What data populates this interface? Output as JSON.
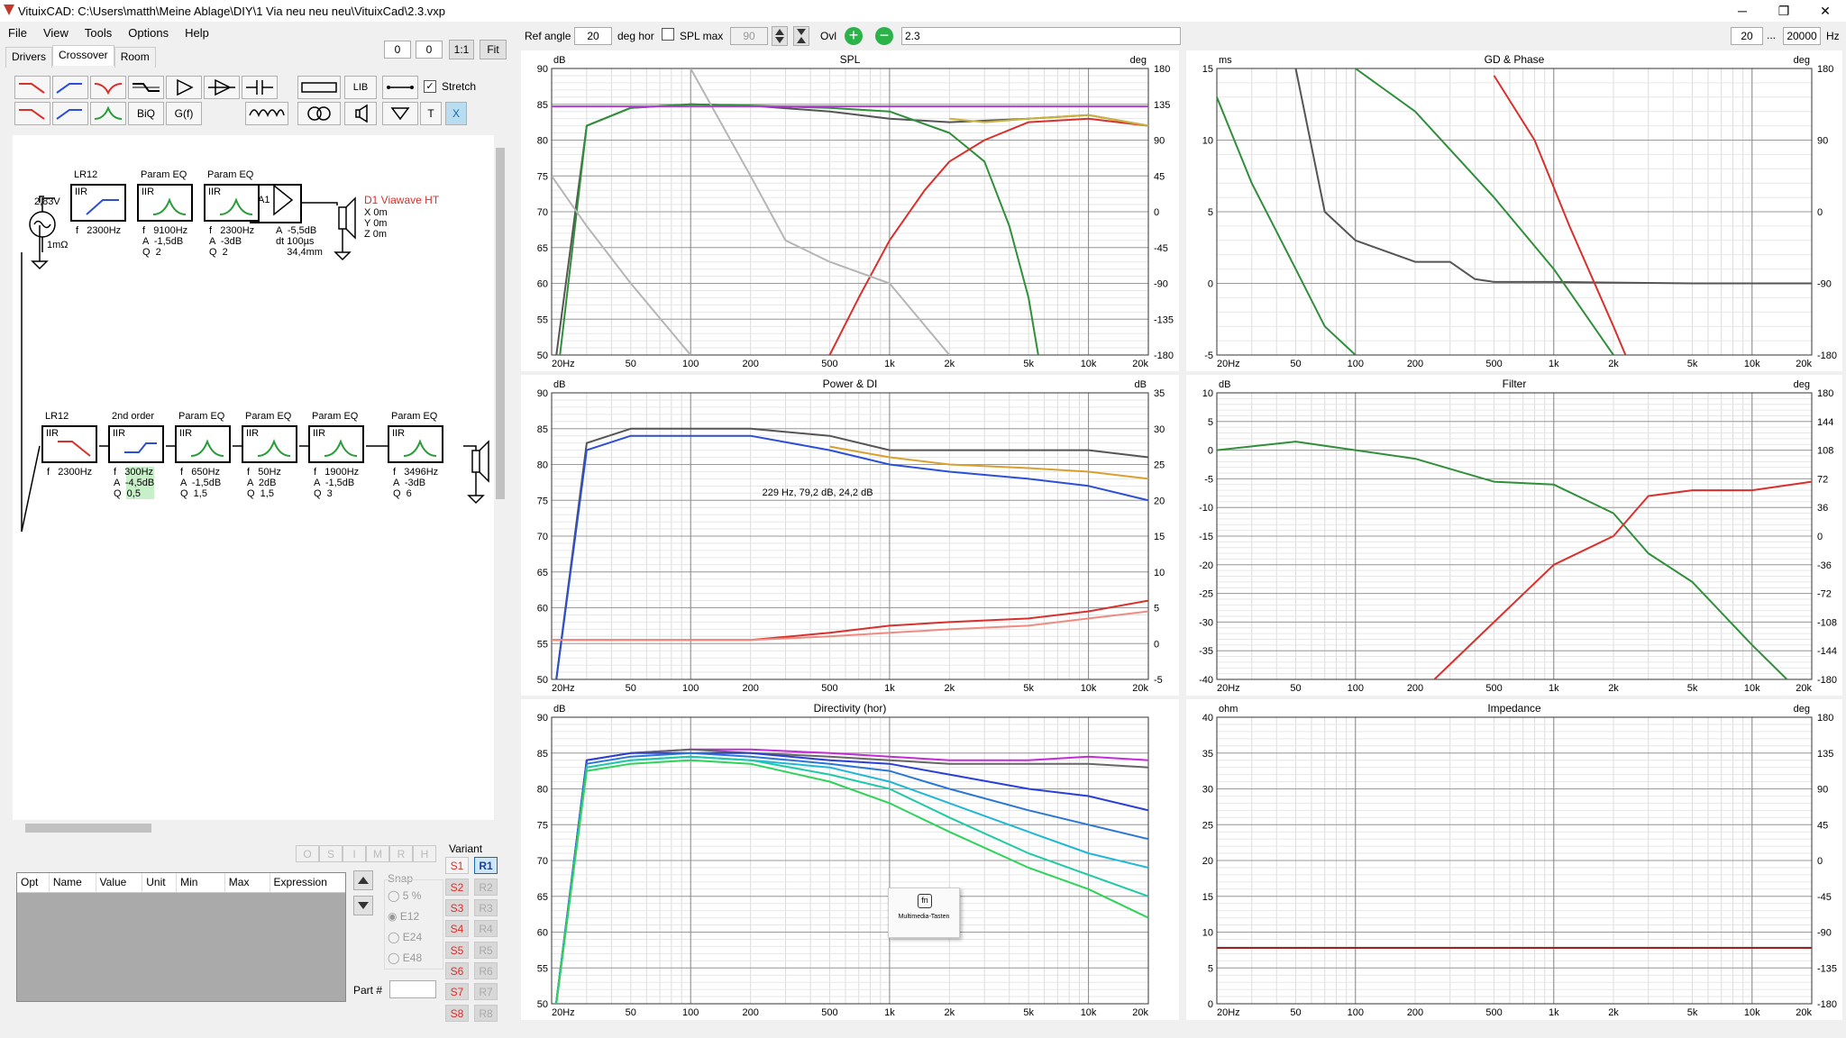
{
  "window": {
    "title": "VituixCAD: C:\\Users\\matth\\Meine Ablage\\DIY\\1 Via neu neu neu\\VituixCad\\2.3.vxp",
    "min": "─",
    "max": "❐",
    "close": "✕"
  },
  "menu": [
    "File",
    "View",
    "Tools",
    "Options",
    "Help"
  ],
  "tabs": [
    "Drivers",
    "Crossover",
    "Room"
  ],
  "crossover_toolbar": {
    "x1": "0",
    "x2": "0",
    "one_to_one": "1:1",
    "fit": "Fit",
    "lib": "LIB",
    "biq": "BiQ",
    "gf": "G(f)",
    "stretch_label": "Stretch",
    "t": "T",
    "x": "X"
  },
  "top_toolbar": {
    "ref_angle_label": "Ref angle",
    "ref_angle_value": "20",
    "deg_hor": "deg hor",
    "spl_max_label": "SPL max",
    "spl_max_value": "90",
    "ovl_label": "Ovl",
    "ovl_value": "2.3",
    "freq_min": "20",
    "freq_sep": "...",
    "freq_max": "20000",
    "hz": "Hz"
  },
  "schematic": {
    "gen_voltage": "2,83V",
    "gen_r": "1mΩ",
    "top_chain": [
      {
        "title": "LR12",
        "type": "IIR",
        "params": "f   2300Hz"
      },
      {
        "title": "Param EQ",
        "type": "IIR",
        "params": "f   9100Hz\nA  -1,5dB\nQ  2"
      },
      {
        "title": "Param EQ",
        "type": "IIR",
        "params": "f   2300Hz\nA  -3dB\nQ  2"
      }
    ],
    "amp": {
      "label": "A1",
      "params": "A  -5,5dB\ndt 100µs\n    34,4mm"
    },
    "driver1": {
      "name": "D1 Viawave HT",
      "pos": "X 0m\nY 0m\nZ 0m"
    },
    "bottom_chain": [
      {
        "title": "LR12",
        "type": "IIR",
        "params": "f   2300Hz"
      },
      {
        "title": "2nd order",
        "type": "IIR",
        "params": "f   300Hz\nA  -4,5dB\nQ  0,5"
      },
      {
        "title": "Param EQ",
        "type": "IIR",
        "params": "f   650Hz\nA  -1,5dB\nQ  1,5"
      },
      {
        "title": "Param EQ",
        "type": "IIR",
        "params": "f   50Hz\nA  2dB\nQ  1,5"
      },
      {
        "title": "Param EQ",
        "type": "IIR",
        "params": "f   1900Hz\nA  -1,5dB\nQ  3"
      },
      {
        "title": "Param EQ",
        "type": "IIR",
        "params": "f   3496Hz\nA  -3dB\nQ  6"
      }
    ]
  },
  "params_panel": {
    "letter_buttons": [
      "O",
      "S",
      "I",
      "M",
      "R",
      "H"
    ],
    "columns": [
      "Opt",
      "Name",
      "Value",
      "Unit",
      "Min",
      "Max",
      "Expression"
    ],
    "snap_label": "Snap",
    "snap_options": [
      "5 %",
      "E12",
      "E24",
      "E48"
    ],
    "snap_selected": "E12",
    "part_label": "Part #",
    "variant_label": "Variant",
    "variants_s": [
      "S1",
      "S2",
      "S3",
      "S4",
      "S5",
      "S6",
      "S7",
      "S8"
    ],
    "variants_r": [
      "R1",
      "R2",
      "R3",
      "R4",
      "R5",
      "R6",
      "R7",
      "R8"
    ]
  },
  "tooltip": {
    "icon": "fn",
    "text": "Multimedia-Tasten"
  },
  "colors": {
    "accent_red": "#d9302c",
    "accent_blue": "#2b4fd6",
    "accent_green": "#2a9d3a",
    "purple_line": "#b03fd1"
  },
  "chart_data": [
    {
      "type": "line",
      "title": "SPL",
      "xlabel": "Hz",
      "ylabel": "dB",
      "y2label": "deg",
      "xscale": "log",
      "xlim": [
        20,
        20000
      ],
      "ylim": [
        50,
        90
      ],
      "y2lim": [
        -180,
        180
      ],
      "xticks": [
        "20Hz",
        "50",
        "100",
        "200",
        "500",
        "1k",
        "2k",
        "5k",
        "10k",
        "20k"
      ],
      "yticks": [
        "90",
        "85",
        "80",
        "75",
        "70",
        "65",
        "60",
        "55",
        "50"
      ],
      "y2ticks": [
        "180",
        "135",
        "90",
        "45",
        "0",
        "-45",
        "-90",
        "-135",
        "-180"
      ],
      "series": [
        {
          "color": "#555555",
          "x": [
            20,
            30,
            50,
            100,
            200,
            500,
            1000,
            2000,
            5000,
            10000,
            20000
          ],
          "y": [
            45,
            82,
            84.5,
            85,
            84.8,
            84,
            83,
            82.5,
            83,
            83.5,
            82
          ]
        },
        {
          "color": "#2f8f3a",
          "x": [
            20,
            30,
            50,
            100,
            200,
            500,
            1000,
            2000,
            3000,
            4000,
            5000,
            6000
          ],
          "y": [
            40,
            82,
            84.5,
            85,
            84.8,
            84.5,
            84,
            81,
            77,
            68,
            58,
            45
          ]
        },
        {
          "color": "#d9302c",
          "x": [
            500,
            700,
            1000,
            1500,
            2000,
            3000,
            5000,
            10000,
            20000
          ],
          "y": [
            50,
            58,
            66,
            73,
            77,
            80,
            82.5,
            83,
            82
          ]
        },
        {
          "color": "#b5b5b5",
          "x": [
            20,
            30,
            50,
            100
          ],
          "y": [
            75,
            68,
            60,
            50
          ]
        },
        {
          "color": "#b5b5b5",
          "x": [
            100,
            200,
            300,
            500,
            1000,
            2000
          ],
          "y": [
            90,
            75,
            66,
            63,
            60,
            50
          ]
        },
        {
          "color": "#c9b23a",
          "x": [
            2000,
            3000,
            5000,
            10000,
            20000
          ],
          "y": [
            83,
            82.5,
            83,
            83.5,
            82
          ]
        },
        {
          "color": "#b03fd1",
          "x": [
            20,
            20000
          ],
          "y": [
            84.7,
            84.7
          ]
        }
      ]
    },
    {
      "type": "line",
      "title": "GD & Phase",
      "ylabel": "ms",
      "y2label": "deg",
      "xscale": "log",
      "xlim": [
        20,
        20000
      ],
      "ylim": [
        -5,
        15
      ],
      "y2lim": [
        -180,
        180
      ],
      "xticks": [
        "20Hz",
        "50",
        "100",
        "200",
        "500",
        "1k",
        "2k",
        "5k",
        "10k",
        "20k"
      ],
      "yticks": [
        "15",
        "10",
        "5",
        "0",
        "-5"
      ],
      "y2ticks": [
        "180",
        "90",
        "0",
        "-90",
        "-180"
      ],
      "series": [
        {
          "color": "#555555",
          "x": [
            50,
            70,
            100,
            200,
            300,
            400,
            500,
            1000,
            5000,
            20000
          ],
          "y": [
            15,
            5,
            3,
            1.5,
            1.5,
            0.3,
            0.1,
            0.1,
            0,
            0
          ]
        },
        {
          "color": "#2f8f3a",
          "x": [
            20,
            30,
            50,
            70,
            100
          ],
          "y": [
            13,
            7,
            1,
            -3,
            -5
          ]
        },
        {
          "color": "#2f8f3a",
          "x": [
            100,
            200,
            500,
            1000,
            2000
          ],
          "y": [
            15,
            12,
            6,
            1,
            -5
          ]
        },
        {
          "color": "#d9302c",
          "x": [
            500,
            800,
            1200,
            2000,
            2300
          ],
          "y": [
            14.5,
            10,
            4,
            -3,
            -5
          ]
        }
      ]
    },
    {
      "type": "line",
      "title": "Power & DI",
      "ylabel": "dB",
      "y2label": "dB",
      "xscale": "log",
      "xlim": [
        20,
        20000
      ],
      "ylim": [
        50,
        90
      ],
      "y2lim": [
        -5,
        35
      ],
      "xticks": [
        "20Hz",
        "50",
        "100",
        "200",
        "500",
        "1k",
        "2k",
        "5k",
        "10k",
        "20k"
      ],
      "yticks": [
        "90",
        "85",
        "80",
        "75",
        "70",
        "65",
        "60",
        "55",
        "50"
      ],
      "y2ticks": [
        "35",
        "30",
        "25",
        "20",
        "15",
        "10",
        "5",
        "0",
        "-5"
      ],
      "annotation": "229 Hz, 79,2 dB, 24,2 dB",
      "series": [
        {
          "color": "#555555",
          "x": [
            20,
            30,
            50,
            100,
            200,
            500,
            1000,
            2000,
            5000,
            10000,
            20000
          ],
          "y": [
            45,
            83,
            85,
            85,
            85,
            84,
            82,
            82,
            82,
            82,
            81
          ]
        },
        {
          "color": "#2b4fd6",
          "x": [
            20,
            30,
            50,
            100,
            200,
            500,
            1000,
            2000,
            5000,
            10000,
            20000
          ],
          "y": [
            45,
            82,
            84,
            84,
            84,
            82,
            80,
            79,
            78,
            77,
            75
          ]
        },
        {
          "color": "#d9a030",
          "x": [
            500,
            1000,
            2000,
            5000,
            10000,
            20000
          ],
          "y": [
            82.5,
            81,
            80,
            79.5,
            79,
            78
          ]
        },
        {
          "color": "#d9302c",
          "x": [
            20,
            200,
            500,
            1000,
            2000,
            5000,
            10000,
            20000
          ],
          "y": [
            55.5,
            55.5,
            56.5,
            57.5,
            58,
            58.5,
            59.5,
            61
          ]
        },
        {
          "color": "#f08a80",
          "x": [
            20,
            200,
            500,
            1000,
            2000,
            5000,
            10000,
            20000
          ],
          "y": [
            55.5,
            55.5,
            56,
            56.5,
            57,
            57.5,
            58.5,
            59.5
          ]
        }
      ]
    },
    {
      "type": "line",
      "title": "Filter",
      "ylabel": "dB",
      "y2label": "deg",
      "xscale": "log",
      "xlim": [
        20,
        20000
      ],
      "ylim": [
        -40,
        10
      ],
      "y2lim": [
        -180,
        180
      ],
      "xticks": [
        "20Hz",
        "50",
        "100",
        "200",
        "500",
        "1k",
        "2k",
        "5k",
        "10k",
        "20k"
      ],
      "yticks": [
        "10",
        "5",
        "0",
        "-5",
        "-10",
        "-15",
        "-20",
        "-25",
        "-30",
        "-35",
        "-40"
      ],
      "y2ticks": [
        "180",
        "144",
        "108",
        "72",
        "36",
        "0",
        "-36",
        "-72",
        "-108",
        "-144",
        "-180"
      ],
      "series": [
        {
          "color": "#2f8f3a",
          "x": [
            20,
            50,
            100,
            200,
            500,
            1000,
            2000,
            3000,
            5000,
            10000,
            15000
          ],
          "y": [
            0,
            1.5,
            0,
            -1.5,
            -5.5,
            -6,
            -11,
            -18,
            -23,
            -34,
            -40
          ]
        },
        {
          "color": "#d9302c",
          "x": [
            250,
            500,
            1000,
            2000,
            3000,
            5000,
            10000,
            20000
          ],
          "y": [
            -40,
            -30,
            -20,
            -15,
            -8,
            -7,
            -7,
            -5.5
          ]
        }
      ]
    },
    {
      "type": "line",
      "title": "Directivity (hor)",
      "ylabel": "dB",
      "xscale": "log",
      "xlim": [
        20,
        20000
      ],
      "ylim": [
        50,
        90
      ],
      "xticks": [
        "20Hz",
        "50",
        "100",
        "200",
        "500",
        "1k",
        "2k",
        "5k",
        "10k",
        "20k"
      ],
      "yticks": [
        "90",
        "85",
        "80",
        "75",
        "70",
        "65",
        "60",
        "55",
        "50"
      ],
      "series": [
        {
          "color": "#c42bd8",
          "x": [
            20,
            30,
            50,
            100,
            200,
            500,
            1000,
            2000,
            5000,
            10000,
            20000
          ],
          "y": [
            45,
            84,
            85,
            85.5,
            85.5,
            85,
            84.5,
            84,
            84,
            84.5,
            84
          ]
        },
        {
          "color": "#666666",
          "x": [
            20,
            30,
            50,
            100,
            200,
            500,
            1000,
            2000,
            5000,
            10000,
            20000
          ],
          "y": [
            45,
            84,
            85,
            85.5,
            85,
            84.5,
            84,
            83.5,
            83.5,
            83.5,
            83
          ]
        },
        {
          "color": "#2a3fd6",
          "x": [
            20,
            30,
            50,
            100,
            200,
            500,
            1000,
            2000,
            5000,
            10000,
            20000
          ],
          "y": [
            45,
            84,
            85,
            85,
            85,
            84,
            83.5,
            82,
            80,
            79,
            77
          ]
        },
        {
          "color": "#2a76d6",
          "x": [
            20,
            30,
            50,
            100,
            200,
            500,
            1000,
            2000,
            5000,
            10000,
            20000
          ],
          "y": [
            45,
            83.5,
            84.5,
            85,
            84.5,
            83.5,
            82.5,
            80,
            77,
            75,
            73
          ]
        },
        {
          "color": "#20b7d6",
          "x": [
            20,
            30,
            50,
            100,
            200,
            500,
            1000,
            2000,
            5000,
            10000,
            20000
          ],
          "y": [
            45,
            83,
            84,
            84.5,
            84,
            83,
            81,
            78,
            74,
            71,
            69
          ]
        },
        {
          "color": "#20c9a6",
          "x": [
            20,
            30,
            50,
            100,
            200,
            500,
            1000,
            2000,
            5000,
            10000,
            20000
          ],
          "y": [
            45,
            83,
            84,
            84.5,
            84,
            82,
            80,
            76,
            71,
            68,
            65
          ]
        },
        {
          "color": "#2fd25a",
          "x": [
            20,
            30,
            50,
            100,
            200,
            500,
            1000,
            2000,
            5000,
            10000,
            20000
          ],
          "y": [
            45,
            82.5,
            83.5,
            84,
            83.5,
            81,
            78,
            74,
            69,
            66,
            62
          ]
        }
      ]
    },
    {
      "type": "line",
      "title": "Impedance",
      "ylabel": "ohm",
      "y2label": "deg",
      "xscale": "log",
      "xlim": [
        20,
        20000
      ],
      "ylim": [
        0,
        40
      ],
      "y2lim": [
        -180,
        180
      ],
      "xticks": [
        "20Hz",
        "50",
        "100",
        "200",
        "500",
        "1k",
        "2k",
        "5k",
        "10k",
        "20k"
      ],
      "yticks": [
        "40",
        "35",
        "30",
        "25",
        "20",
        "15",
        "10",
        "5",
        "0"
      ],
      "y2ticks": [
        "180",
        "135",
        "90",
        "45",
        "0",
        "-45",
        "-90",
        "-135",
        "-180"
      ],
      "series": [
        {
          "color": "#a02020",
          "x": [
            20,
            20000
          ],
          "y": [
            7.8,
            7.8
          ]
        }
      ]
    }
  ]
}
